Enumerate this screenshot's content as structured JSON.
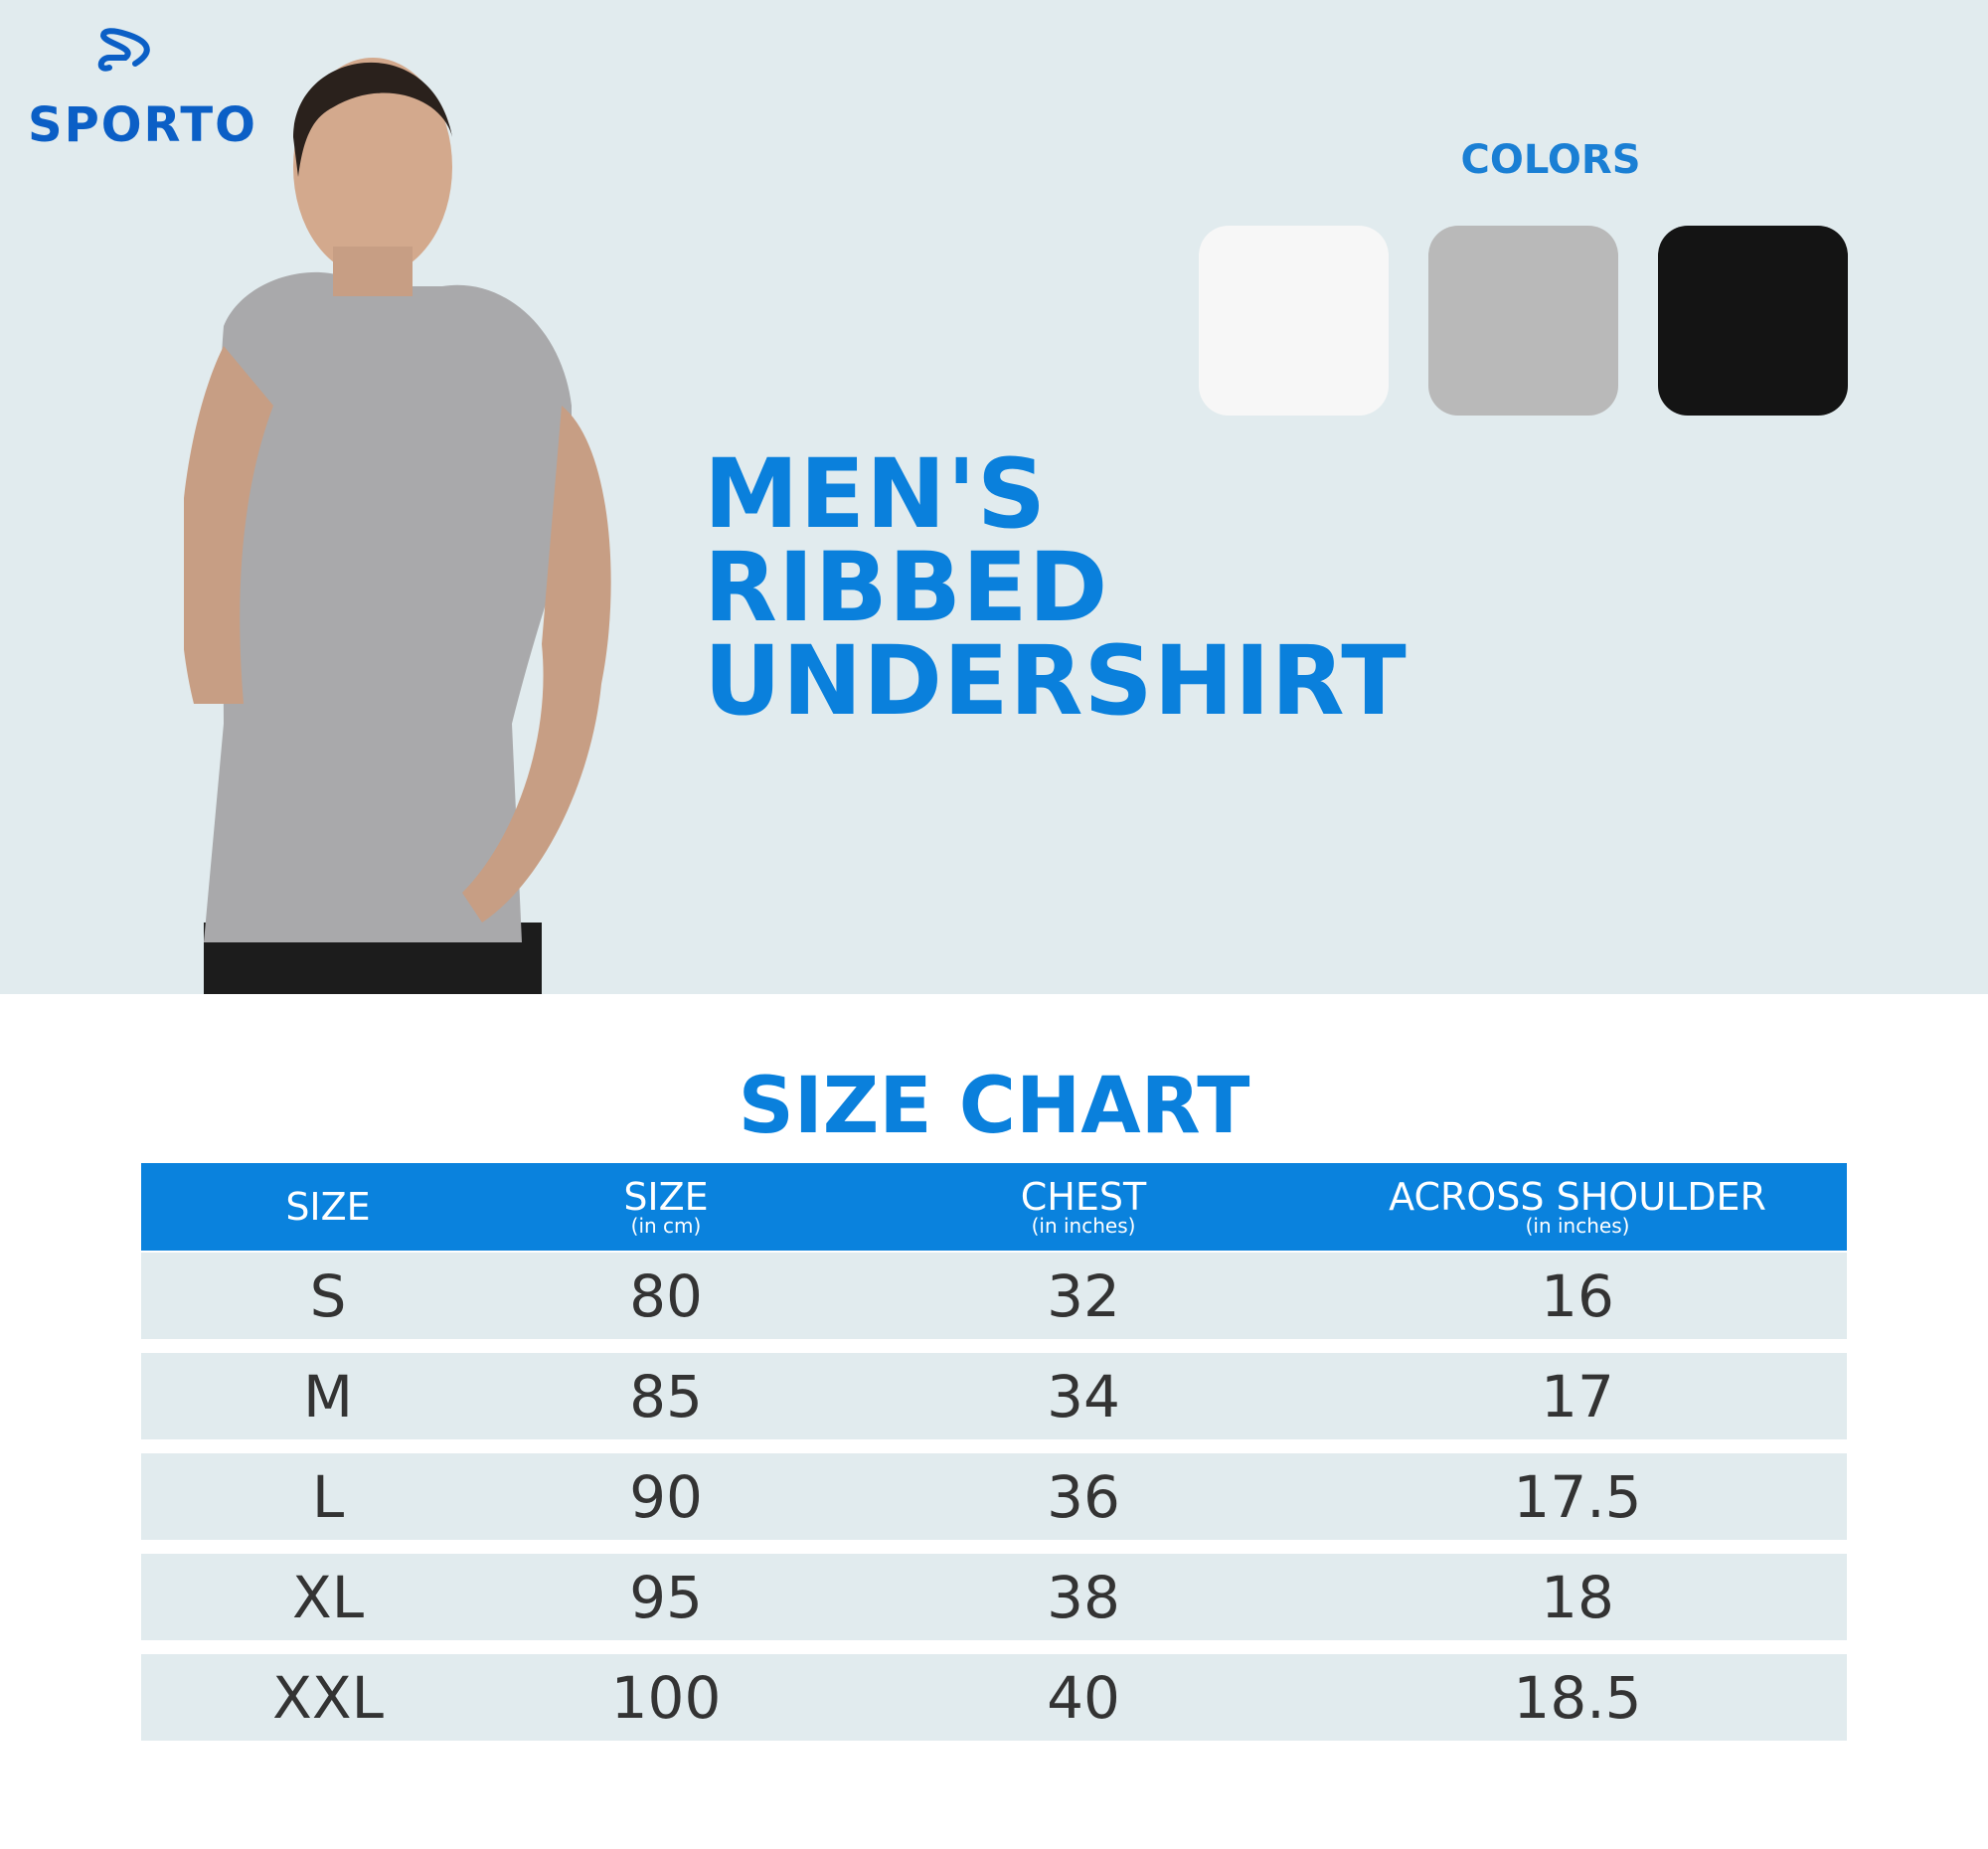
{
  "brand": {
    "name": "SPORTO",
    "color": "#0b5fc6"
  },
  "colors": {
    "label": "COLORS",
    "swatches": [
      {
        "name": "white",
        "hex": "#f7f7f7"
      },
      {
        "name": "grey",
        "hex": "#b9b9b9"
      },
      {
        "name": "black",
        "hex": "#141414"
      }
    ]
  },
  "product": {
    "title_lines": [
      "MEN'S",
      "RIBBED",
      "UNDERSHIRT"
    ]
  },
  "size_chart": {
    "title": "SIZE CHART",
    "accent": "#0a82dd",
    "headers": [
      {
        "label": "SIZE",
        "unit": ""
      },
      {
        "label": "SIZE",
        "unit": "(in cm)"
      },
      {
        "label": "CHEST",
        "unit": "(in inches)"
      },
      {
        "label": "ACROSS SHOULDER",
        "unit": "(in inches)"
      }
    ],
    "rows": [
      [
        "S",
        "80",
        "32",
        "16"
      ],
      [
        "M",
        "85",
        "34",
        "17"
      ],
      [
        "L",
        "90",
        "36",
        "17.5"
      ],
      [
        "XL",
        "95",
        "38",
        "18"
      ],
      [
        "XXL",
        "100",
        "40",
        "18.5"
      ]
    ]
  }
}
